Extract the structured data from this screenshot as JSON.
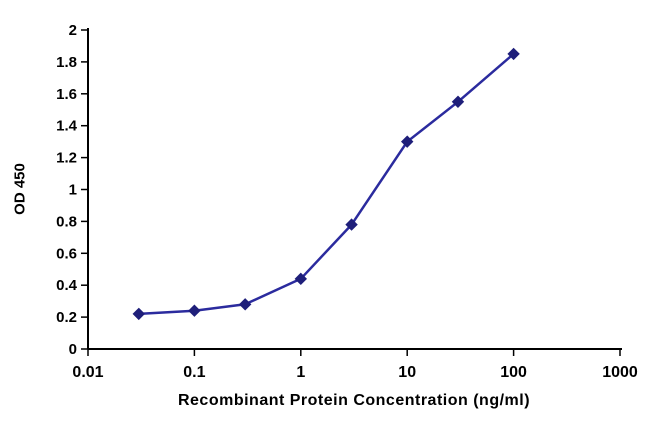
{
  "chart_data": {
    "type": "line",
    "title": "",
    "xlabel": "Recombinant Protein Concentration (ng/ml)",
    "ylabel": "OD 450",
    "x_scale": "log",
    "xlim": [
      0.01,
      1000
    ],
    "ylim": [
      0,
      2
    ],
    "grid": false,
    "legend": "none",
    "x_ticks": [
      {
        "value": 0.01,
        "label": "0.01"
      },
      {
        "value": 0.1,
        "label": "0.1"
      },
      {
        "value": 1,
        "label": "1"
      },
      {
        "value": 10,
        "label": "10"
      },
      {
        "value": 100,
        "label": "100"
      },
      {
        "value": 1000,
        "label": "1000"
      }
    ],
    "y_ticks": [
      {
        "value": 0,
        "label": "0"
      },
      {
        "value": 0.2,
        "label": "0.2"
      },
      {
        "value": 0.4,
        "label": "0.4"
      },
      {
        "value": 0.6,
        "label": "0.6"
      },
      {
        "value": 0.8,
        "label": "0.8"
      },
      {
        "value": 1,
        "label": "1"
      },
      {
        "value": 1.2,
        "label": "1.2"
      },
      {
        "value": 1.4,
        "label": "1.4"
      },
      {
        "value": 1.6,
        "label": "1.6"
      },
      {
        "value": 1.8,
        "label": "1.8"
      },
      {
        "value": 2,
        "label": "2"
      }
    ],
    "series": [
      {
        "name": "OD 450",
        "marker": "diamond",
        "color": "#2b2b9e",
        "marker_color": "#1f1f7a",
        "x": [
          0.03,
          0.1,
          0.3,
          1,
          3,
          10,
          30,
          100
        ],
        "y": [
          0.22,
          0.24,
          0.28,
          0.44,
          0.78,
          1.3,
          1.55,
          1.85
        ]
      }
    ]
  },
  "colors": {
    "axis": "#000000",
    "tick_text": "#000000",
    "background": "#ffffff"
  }
}
